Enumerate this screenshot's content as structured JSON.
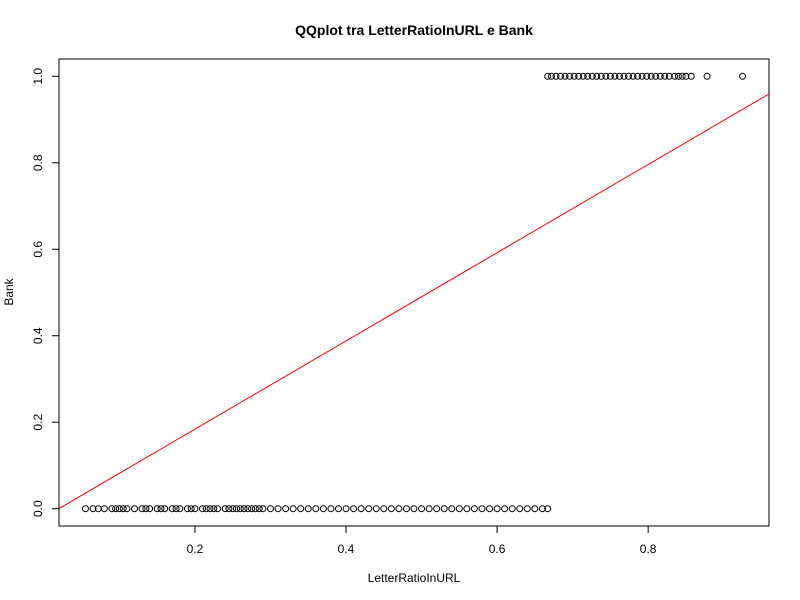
{
  "chart_data": {
    "type": "scatter",
    "title": "QQplot tra LetterRatioInURL e Bank",
    "xlabel": "LetterRatioInURL",
    "ylabel": "Bank",
    "xlim": [
      0.02,
      0.96
    ],
    "ylim": [
      -0.04,
      1.04
    ],
    "x_ticks": [
      0.2,
      0.4,
      0.6,
      0.8
    ],
    "x_tick_labels": [
      "0.2",
      "0.4",
      "0.6",
      "0.8"
    ],
    "y_ticks": [
      0.0,
      0.2,
      0.4,
      0.6,
      0.8,
      1.0
    ],
    "y_tick_labels": [
      "0.0",
      "0.2",
      "0.4",
      "0.6",
      "0.8",
      "1.0"
    ],
    "grid": false,
    "series": [
      {
        "values_y": 0,
        "x": [
          0.055,
          0.065,
          0.072,
          0.08,
          0.09,
          0.095,
          0.1,
          0.105,
          0.11,
          0.12,
          0.13,
          0.135,
          0.14,
          0.15,
          0.155,
          0.16,
          0.17,
          0.175,
          0.18,
          0.19,
          0.195,
          0.2,
          0.21,
          0.215,
          0.22,
          0.225,
          0.23,
          0.24,
          0.245,
          0.25,
          0.255,
          0.26,
          0.265,
          0.27,
          0.275,
          0.28,
          0.285,
          0.29,
          0.3,
          0.31,
          0.32,
          0.33,
          0.34,
          0.35,
          0.36,
          0.37,
          0.38,
          0.39,
          0.4,
          0.41,
          0.42,
          0.43,
          0.44,
          0.45,
          0.46,
          0.47,
          0.48,
          0.49,
          0.5,
          0.51,
          0.52,
          0.53,
          0.54,
          0.55,
          0.56,
          0.57,
          0.58,
          0.59,
          0.6,
          0.61,
          0.62,
          0.63,
          0.64,
          0.65,
          0.66,
          0.667
        ]
      },
      {
        "values_y": 1,
        "x": [
          0.667,
          0.672,
          0.678,
          0.684,
          0.69,
          0.696,
          0.702,
          0.708,
          0.714,
          0.72,
          0.726,
          0.732,
          0.738,
          0.744,
          0.75,
          0.756,
          0.762,
          0.768,
          0.774,
          0.78,
          0.786,
          0.792,
          0.798,
          0.804,
          0.81,
          0.816,
          0.822,
          0.828,
          0.835,
          0.84,
          0.845,
          0.85,
          0.857,
          0.878,
          0.925
        ]
      }
    ],
    "reference_line": {
      "color": "#ff0000",
      "intercept": -0.02,
      "slope": 1.02
    },
    "point_color": "#000000"
  }
}
